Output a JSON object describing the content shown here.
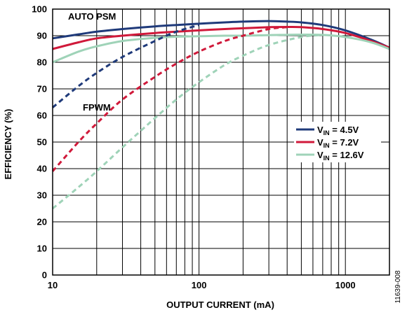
{
  "chart_data": {
    "type": "line",
    "xlabel": "OUTPUT CURRENT (mA)",
    "ylabel": "EFFICIENCY (%)",
    "x_scale": "log",
    "xlim": [
      10,
      2000
    ],
    "ylim": [
      0,
      100
    ],
    "x_ticks": [
      10,
      100,
      1000
    ],
    "x_tick_labels": [
      "10",
      "100",
      "1000"
    ],
    "y_ticks": [
      0,
      10,
      20,
      30,
      40,
      50,
      60,
      70,
      80,
      90,
      100
    ],
    "y_tick_labels": [
      "0",
      "10",
      "20",
      "30",
      "40",
      "50",
      "60",
      "70",
      "80",
      "90",
      "100"
    ],
    "grid": true,
    "legend_position": "right",
    "annotations": [
      "AUTO PSM",
      "FPWM"
    ],
    "figure_id": "11639-008",
    "legend": [
      {
        "label_main": "V",
        "label_sub": "IN",
        "label_rest": " = 4.5V",
        "color": "#1f3a7a"
      },
      {
        "label_main": "V",
        "label_sub": "IN",
        "label_rest": " = 7.2V",
        "color": "#d0193a"
      },
      {
        "label_main": "V",
        "label_sub": "IN",
        "label_rest": " = 12.6V",
        "color": "#9fd3b8"
      }
    ],
    "series": [
      {
        "name": "VIN = 4.5V (AUTO PSM)",
        "color": "#1f3a7a",
        "style": "solid",
        "x": [
          10,
          15,
          20,
          30,
          50,
          70,
          100,
          150,
          200,
          300,
          400,
          500,
          700,
          1000,
          1500,
          2000
        ],
        "y": [
          89,
          90.5,
          91.5,
          92.5,
          93.5,
          94,
          94.5,
          95,
          95.3,
          95.5,
          95.3,
          95,
          94,
          92,
          88.5,
          85.5
        ]
      },
      {
        "name": "VIN = 7.2V (AUTO PSM)",
        "color": "#d0193a",
        "style": "solid",
        "x": [
          10,
          15,
          20,
          30,
          50,
          70,
          100,
          150,
          200,
          300,
          400,
          500,
          700,
          1000,
          1500,
          2000
        ],
        "y": [
          85,
          87.5,
          89,
          90,
          91,
          91.5,
          92,
          92.5,
          92.8,
          93.2,
          93.3,
          93.2,
          92.5,
          91,
          88,
          85.5
        ]
      },
      {
        "name": "VIN = 12.6V (AUTO PSM)",
        "color": "#9fd3b8",
        "style": "solid",
        "x": [
          10,
          15,
          20,
          30,
          50,
          70,
          100,
          150,
          200,
          300,
          500,
          700,
          1000,
          1500,
          2000
        ],
        "y": [
          80,
          84,
          86,
          88,
          89.2,
          89.6,
          89.8,
          90,
          90,
          90.2,
          90.4,
          90.3,
          89.5,
          87.5,
          85
        ]
      },
      {
        "name": "VIN = 4.5V (FPWM)",
        "color": "#1f3a7a",
        "style": "dashed",
        "x": [
          10,
          15,
          20,
          30,
          50,
          70,
          100
        ],
        "y": [
          63,
          71,
          76,
          82,
          88,
          91.5,
          94
        ]
      },
      {
        "name": "VIN = 7.2V (FPWM)",
        "color": "#d0193a",
        "style": "dashed",
        "x": [
          10,
          15,
          20,
          30,
          50,
          70,
          100,
          150,
          200,
          300,
          400
        ],
        "y": [
          39,
          50,
          57,
          66,
          74.5,
          79.5,
          84,
          88,
          90,
          92.5,
          93.2
        ]
      },
      {
        "name": "VIN = 12.6V (FPWM)",
        "color": "#9fd3b8",
        "style": "dashed",
        "x": [
          10,
          15,
          20,
          30,
          50,
          70,
          100,
          150,
          200,
          300,
          500,
          700
        ],
        "y": [
          25,
          33,
          39,
          48,
          59,
          66,
          72.5,
          79,
          82.5,
          86.5,
          89.5,
          90.3
        ]
      }
    ]
  }
}
